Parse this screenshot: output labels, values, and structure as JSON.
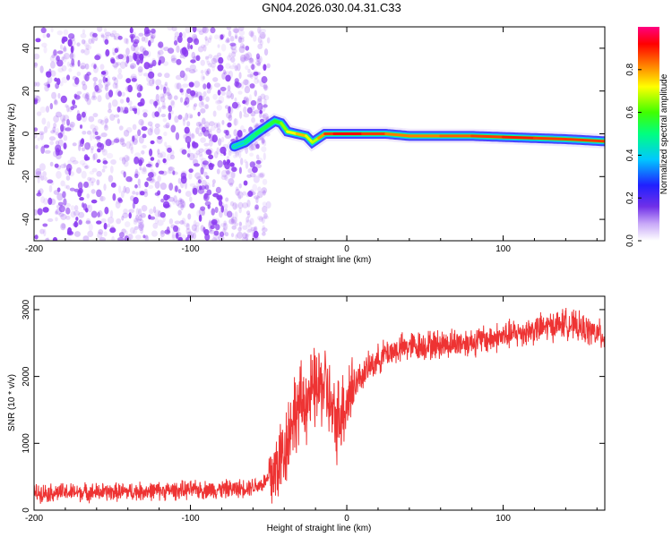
{
  "title": "GN04.2026.030.04.31.C33",
  "colors": {
    "snr_line": "#ee3333",
    "scatter_base": "#8c3cf0",
    "frame": "#000000"
  },
  "chart_data": [
    {
      "type": "heatmap",
      "name": "spectrogram",
      "xlabel": "Height of straight line (km)",
      "ylabel": "Frequency (Hz)",
      "xlim": [
        -200,
        165
      ],
      "ylim": [
        -50,
        50
      ],
      "xticks": [
        -200,
        -100,
        0,
        100
      ],
      "xtick_labels": [
        "-200",
        "-100",
        "0",
        "100"
      ],
      "yticks": [
        -40,
        -20,
        0,
        20,
        40
      ],
      "ytick_labels": [
        "-40",
        "-20",
        "0",
        "20",
        "40"
      ],
      "noise_region_x": [
        -200,
        -50
      ],
      "ridge": {
        "x": [
          -72,
          -65,
          -58,
          -52,
          -46,
          -42,
          -38,
          -32,
          -26,
          -22,
          -18,
          -14,
          -8,
          0,
          10,
          25,
          40,
          60,
          80,
          100,
          120,
          140,
          165
        ],
        "y": [
          -6,
          -4,
          0,
          3,
          6,
          5,
          1,
          0,
          -1,
          -4,
          -2,
          0,
          0,
          0,
          0,
          0,
          -1,
          -1,
          -1,
          -1.5,
          -2,
          -2.5,
          -3.5
        ],
        "amplitude": [
          0.35,
          0.45,
          0.5,
          0.55,
          0.55,
          0.6,
          0.7,
          0.75,
          0.8,
          0.6,
          0.75,
          0.85,
          0.9,
          0.95,
          0.9,
          0.85,
          0.8,
          0.85,
          0.85,
          0.9,
          0.9,
          0.85,
          0.9
        ]
      },
      "colorbar": {
        "label": "Normalized spectral amplitude",
        "range": [
          0,
          1
        ],
        "ticks": [
          0.0,
          0.2,
          0.4,
          0.6,
          0.8
        ],
        "tick_labels": [
          "0.0",
          "0.2",
          "0.4",
          "0.6",
          "0.8"
        ]
      }
    },
    {
      "type": "line",
      "name": "snr",
      "xlabel": "Height of straight line (km)",
      "ylabel": "SNR (10 * v/v)",
      "xlim": [
        -200,
        165
      ],
      "ylim": [
        0,
        3200
      ],
      "xticks": [
        -200,
        -100,
        0,
        100
      ],
      "xtick_labels": [
        "-200",
        "-100",
        "0",
        "100"
      ],
      "yticks": [
        0,
        1000,
        2000,
        3000
      ],
      "ytick_labels": [
        "0",
        "1000",
        "2000",
        "3000"
      ],
      "trend": {
        "x": [
          -200,
          -150,
          -100,
          -70,
          -55,
          -48,
          -40,
          -34,
          -28,
          -20,
          -14,
          -8,
          -3,
          5,
          15,
          25,
          40,
          60,
          80,
          100,
          120,
          140,
          165
        ],
        "y": [
          260,
          270,
          300,
          320,
          380,
          500,
          900,
          1450,
          1600,
          1800,
          1900,
          1300,
          1500,
          1900,
          2150,
          2350,
          2450,
          2480,
          2520,
          2600,
          2700,
          2800,
          2600
        ]
      },
      "noise_amplitude": 140
    }
  ]
}
